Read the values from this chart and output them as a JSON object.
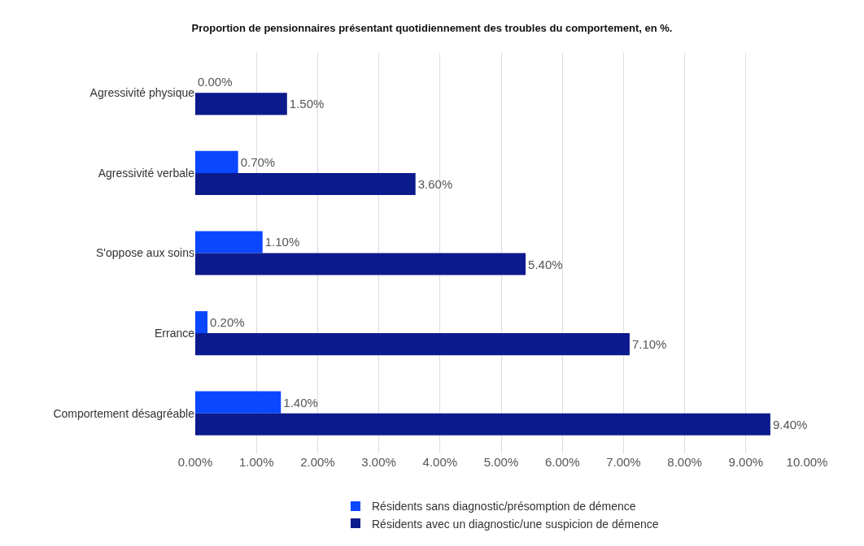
{
  "chart_data": {
    "type": "bar",
    "orientation": "horizontal",
    "title": "Proportion de pensionnaires présentant quotidiennement des troubles du comportement, en %.",
    "categories": [
      "Agressivité physique",
      "Agressivité verbale",
      "S'oppose aux soins",
      "Errance",
      "Comportement désagréable"
    ],
    "series": [
      {
        "name": "Résidents sans diagnostic/présomption de démence",
        "color": "#0a47ff",
        "values": [
          0,
          0.7,
          1.1,
          0.2,
          1.4
        ],
        "value_labels": [
          "0.00%",
          "0.70%",
          "1.10%",
          "0.20%",
          "1.40%"
        ]
      },
      {
        "name": "Résidents avec un diagnostic/une suspicion de démence",
        "color": "#0b1a8c",
        "values": [
          1.5,
          3.6,
          5.4,
          7.1,
          9.4
        ],
        "value_labels": [
          "1.50%",
          "3.60%",
          "5.40%",
          "7.10%",
          "9.40%"
        ]
      }
    ],
    "xlim": [
      0,
      10
    ],
    "xticks": [
      {
        "value": 0,
        "label": "0.00%"
      },
      {
        "value": 1,
        "label": "1.00%"
      },
      {
        "value": 2,
        "label": "2.00%"
      },
      {
        "value": 3,
        "label": "3.00%"
      },
      {
        "value": 4,
        "label": "4.00%"
      },
      {
        "value": 5,
        "label": "5.00%"
      },
      {
        "value": 6,
        "label": "6.00%"
      },
      {
        "value": 7,
        "label": "7.00%"
      },
      {
        "value": 8,
        "label": "8.00%"
      },
      {
        "value": 9,
        "label": "9.00%"
      },
      {
        "value": 10,
        "label": "10.00%"
      }
    ],
    "grid": "x",
    "legend": "bottom"
  }
}
